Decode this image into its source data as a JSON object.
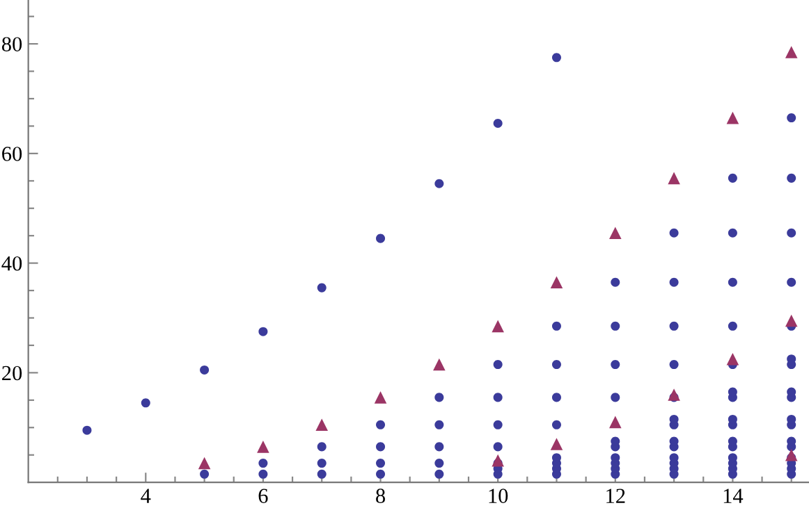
{
  "chart_data": {
    "type": "scatter",
    "series": [
      {
        "color": "#3b3b9b",
        "marker": "circle",
        "x": [
          3,
          4,
          5,
          5,
          6,
          6,
          6,
          7,
          7,
          7,
          7,
          8,
          8,
          8,
          8,
          8,
          9,
          9,
          9,
          9,
          9,
          9,
          10,
          10,
          10,
          10,
          10,
          10,
          10,
          10,
          11,
          11,
          11,
          11,
          11,
          11,
          11,
          11,
          11,
          12,
          12,
          12,
          12,
          12,
          12,
          12,
          12,
          12,
          12,
          13,
          13,
          13,
          13,
          13,
          13,
          13,
          13,
          13,
          13,
          13,
          13,
          13,
          14,
          14,
          14,
          14,
          14,
          14,
          14,
          14,
          14,
          14,
          14,
          14,
          14,
          14,
          14,
          15,
          15,
          15,
          15,
          15,
          15,
          15,
          15,
          15,
          15,
          15,
          15,
          15,
          15,
          15,
          15,
          15
        ],
        "values": [
          9.5,
          14.5,
          1.5,
          20.5,
          1.5,
          3.5,
          27.5,
          1.5,
          3.5,
          6.5,
          35.5,
          1.5,
          3.5,
          6.5,
          10.5,
          44.5,
          1.5,
          3.5,
          6.5,
          10.5,
          15.5,
          54.5,
          1.5,
          2.5,
          3.5,
          6.5,
          10.5,
          15.5,
          21.5,
          65.5,
          1.5,
          2.5,
          3.5,
          4.5,
          10.5,
          15.5,
          21.5,
          28.5,
          77.5,
          1.5,
          2.5,
          3.5,
          4.5,
          6.5,
          7.5,
          15.5,
          21.5,
          28.5,
          36.5,
          1.5,
          2.5,
          3.5,
          4.5,
          6.5,
          7.5,
          10.5,
          11.5,
          15.5,
          21.5,
          28.5,
          36.5,
          45.5,
          1.5,
          2.5,
          3.5,
          4.5,
          6.5,
          7.5,
          10.5,
          11.5,
          15.5,
          16.5,
          21.5,
          28.5,
          36.5,
          45.5,
          55.5,
          1.5,
          2.5,
          3.5,
          4.5,
          6.5,
          7.5,
          10.5,
          11.5,
          15.5,
          16.5,
          21.5,
          22.5,
          28.5,
          36.5,
          45.5,
          55.5,
          66.5
        ]
      },
      {
        "color": "#9b3565",
        "marker": "triangle",
        "x": [
          5,
          6,
          7,
          8,
          9,
          10,
          11,
          12,
          13,
          14,
          15,
          10,
          11,
          12,
          13,
          14,
          15,
          15
        ],
        "values": [
          3.5,
          6.5,
          10.5,
          15.5,
          21.5,
          28.5,
          36.5,
          45.5,
          55.5,
          66.5,
          78.5,
          4,
          7,
          11,
          16,
          22.5,
          29.5,
          5
        ]
      }
    ],
    "xlim": [
      2,
      15.3
    ],
    "ylim": [
      0,
      88
    ],
    "xticks": [
      {
        "value": 2.5,
        "label": null
      },
      {
        "value": 3,
        "label": null
      },
      {
        "value": 3.5,
        "label": null
      },
      4,
      {
        "value": 4.5,
        "label": null
      },
      {
        "value": 5,
        "label": null
      },
      {
        "value": 5.5,
        "label": null
      },
      6,
      {
        "value": 6.5,
        "label": null
      },
      {
        "value": 7,
        "label": null
      },
      {
        "value": 7.5,
        "label": null
      },
      8,
      {
        "value": 8.5,
        "label": null
      },
      {
        "value": 9,
        "label": null
      },
      {
        "value": 9.5,
        "label": null
      },
      10,
      {
        "value": 10.5,
        "label": null
      },
      {
        "value": 11,
        "label": null
      },
      {
        "value": 11.5,
        "label": null
      },
      12,
      {
        "value": 12.5,
        "label": null
      },
      {
        "value": 13,
        "label": null
      },
      {
        "value": 13.5,
        "label": null
      },
      14,
      {
        "value": 14.5,
        "label": null
      },
      {
        "value": 15,
        "label": null
      }
    ],
    "yticks": [
      {
        "value": 5,
        "label": null
      },
      {
        "value": 10,
        "label": null
      },
      {
        "value": 15,
        "label": null
      },
      20,
      {
        "value": 25,
        "label": null
      },
      {
        "value": 30,
        "label": null
      },
      {
        "value": 35,
        "label": null
      },
      40,
      {
        "value": 45,
        "label": null
      },
      {
        "value": 50,
        "label": null
      },
      {
        "value": 55,
        "label": null
      },
      60,
      {
        "value": 65,
        "label": null
      },
      {
        "value": 70,
        "label": null
      },
      {
        "value": 75,
        "label": null
      },
      80,
      {
        "value": 85,
        "label": null
      }
    ],
    "grid": false,
    "legend": false
  }
}
